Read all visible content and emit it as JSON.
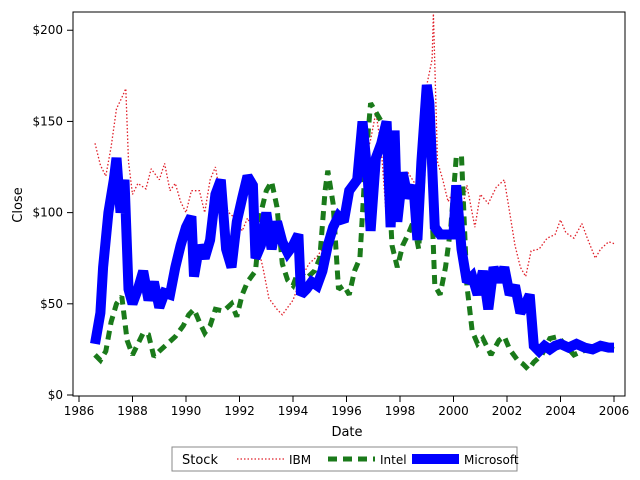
{
  "chart_data": {
    "type": "line",
    "xlabel": "Date",
    "ylabel": "Close",
    "xlim": [
      1986.0,
      2006.0
    ],
    "ylim": [
      0,
      210
    ],
    "xticks": [
      1986,
      1988,
      1990,
      1992,
      1994,
      1996,
      1998,
      2000,
      2002,
      2004,
      2006
    ],
    "yticks": [
      0,
      50,
      100,
      150,
      200
    ],
    "ytick_labels": [
      "$0",
      "$50",
      "$100",
      "$150",
      "$200"
    ],
    "grid": false,
    "legend": {
      "placement": "bottom",
      "title": "Stock",
      "entries": [
        "IBM",
        "Intel",
        "Microsoft"
      ]
    },
    "series": [
      {
        "name": "IBM",
        "color": "#e0202a",
        "style": "dotted",
        "points": [
          [
            1986.6,
            138
          ],
          [
            1986.8,
            126
          ],
          [
            1987.0,
            120
          ],
          [
            1987.2,
            136
          ],
          [
            1987.4,
            157
          ],
          [
            1987.6,
            163
          ],
          [
            1987.75,
            168
          ],
          [
            1987.85,
            128
          ],
          [
            1988.0,
            110
          ],
          [
            1988.2,
            116
          ],
          [
            1988.5,
            113
          ],
          [
            1988.7,
            124
          ],
          [
            1989.0,
            118
          ],
          [
            1989.2,
            127
          ],
          [
            1989.4,
            112
          ],
          [
            1989.6,
            116
          ],
          [
            1989.8,
            106
          ],
          [
            1990.0,
            100
          ],
          [
            1990.2,
            112
          ],
          [
            1990.5,
            112
          ],
          [
            1990.7,
            100
          ],
          [
            1990.9,
            118
          ],
          [
            1991.1,
            125
          ],
          [
            1991.3,
            108
          ],
          [
            1991.6,
            100
          ],
          [
            1991.9,
            96
          ],
          [
            1992.1,
            90
          ],
          [
            1992.3,
            97
          ],
          [
            1992.6,
            88
          ],
          [
            1992.9,
            68
          ],
          [
            1993.1,
            53
          ],
          [
            1993.4,
            47
          ],
          [
            1993.6,
            44
          ],
          [
            1993.8,
            48
          ],
          [
            1994.0,
            52
          ],
          [
            1994.3,
            64
          ],
          [
            1994.6,
            72
          ],
          [
            1994.9,
            76
          ],
          [
            1995.2,
            82
          ],
          [
            1995.5,
            92
          ],
          [
            1995.8,
            100
          ],
          [
            1996.0,
            110
          ],
          [
            1996.3,
            116
          ],
          [
            1996.6,
            122
          ],
          [
            1996.9,
            140
          ],
          [
            1997.1,
            155
          ],
          [
            1997.3,
            135
          ],
          [
            1997.5,
            95
          ],
          [
            1997.7,
            108
          ],
          [
            1998.0,
            100
          ],
          [
            1998.3,
            122
          ],
          [
            1998.6,
            115
          ],
          [
            1998.8,
            160
          ],
          [
            1999.0,
            170
          ],
          [
            1999.2,
            184
          ],
          [
            1999.25,
            209
          ],
          [
            1999.4,
            128
          ],
          [
            1999.6,
            118
          ],
          [
            1999.8,
            106
          ],
          [
            2000.0,
            112
          ],
          [
            2000.3,
            100
          ],
          [
            2000.5,
            115
          ],
          [
            2000.8,
            92
          ],
          [
            2001.0,
            110
          ],
          [
            2001.3,
            105
          ],
          [
            2001.6,
            114
          ],
          [
            2001.9,
            118
          ],
          [
            2002.1,
            100
          ],
          [
            2002.3,
            82
          ],
          [
            2002.5,
            70
          ],
          [
            2002.7,
            65
          ],
          [
            2002.9,
            79
          ],
          [
            2003.2,
            80
          ],
          [
            2003.5,
            86
          ],
          [
            2003.8,
            88
          ],
          [
            2004.0,
            96
          ],
          [
            2004.2,
            89
          ],
          [
            2004.5,
            86
          ],
          [
            2004.8,
            94
          ],
          [
            2005.0,
            86
          ],
          [
            2005.3,
            75
          ],
          [
            2005.5,
            80
          ],
          [
            2005.8,
            84
          ],
          [
            2006.0,
            83
          ]
        ]
      },
      {
        "name": "Intel",
        "color": "#1a7a1a",
        "style": "dashed",
        "points": [
          [
            1986.6,
            22
          ],
          [
            1986.8,
            19
          ],
          [
            1987.0,
            24
          ],
          [
            1987.2,
            40
          ],
          [
            1987.4,
            50
          ],
          [
            1987.6,
            54
          ],
          [
            1987.8,
            30
          ],
          [
            1988.0,
            22
          ],
          [
            1988.2,
            28
          ],
          [
            1988.4,
            34
          ],
          [
            1988.6,
            33
          ],
          [
            1988.8,
            21
          ],
          [
            1989.0,
            24
          ],
          [
            1989.3,
            28
          ],
          [
            1989.6,
            32
          ],
          [
            1989.9,
            38
          ],
          [
            1990.1,
            44
          ],
          [
            1990.3,
            47
          ],
          [
            1990.5,
            40
          ],
          [
            1990.7,
            34
          ],
          [
            1990.9,
            38
          ],
          [
            1991.1,
            47
          ],
          [
            1991.4,
            46
          ],
          [
            1991.7,
            50
          ],
          [
            1991.9,
            43
          ],
          [
            1992.1,
            55
          ],
          [
            1992.3,
            62
          ],
          [
            1992.6,
            68
          ],
          [
            1992.8,
            100
          ],
          [
            1993.0,
            112
          ],
          [
            1993.2,
            117
          ],
          [
            1993.4,
            103
          ],
          [
            1993.6,
            72
          ],
          [
            1993.8,
            63
          ],
          [
            1994.0,
            60
          ],
          [
            1994.2,
            68
          ],
          [
            1994.5,
            64
          ],
          [
            1994.8,
            68
          ],
          [
            1995.0,
            75
          ],
          [
            1995.2,
            112
          ],
          [
            1995.3,
            123
          ],
          [
            1995.5,
            105
          ],
          [
            1995.7,
            58
          ],
          [
            1995.9,
            60
          ],
          [
            1996.1,
            55
          ],
          [
            1996.3,
            68
          ],
          [
            1996.5,
            75
          ],
          [
            1996.7,
            125
          ],
          [
            1996.9,
            160
          ],
          [
            1997.1,
            155
          ],
          [
            1997.3,
            150
          ],
          [
            1997.5,
            140
          ],
          [
            1997.7,
            82
          ],
          [
            1997.9,
            70
          ],
          [
            1998.1,
            82
          ],
          [
            1998.3,
            88
          ],
          [
            1998.5,
            95
          ],
          [
            1998.7,
            80
          ],
          [
            1998.9,
            130
          ],
          [
            1999.1,
            140
          ],
          [
            1999.3,
            60
          ],
          [
            1999.5,
            55
          ],
          [
            1999.7,
            70
          ],
          [
            1999.9,
            92
          ],
          [
            2000.1,
            130
          ],
          [
            2000.3,
            131
          ],
          [
            2000.5,
            60
          ],
          [
            2000.7,
            35
          ],
          [
            2000.9,
            28
          ],
          [
            2001.1,
            31
          ],
          [
            2001.4,
            22
          ],
          [
            2001.7,
            30
          ],
          [
            2001.9,
            32
          ],
          [
            2002.1,
            25
          ],
          [
            2002.4,
            19
          ],
          [
            2002.6,
            17
          ],
          [
            2002.8,
            14
          ],
          [
            2003.0,
            18
          ],
          [
            2003.3,
            22
          ],
          [
            2003.6,
            31
          ],
          [
            2003.9,
            32
          ],
          [
            2004.2,
            27
          ],
          [
            2004.5,
            22
          ],
          [
            2004.8,
            24
          ],
          [
            2005.1,
            25
          ],
          [
            2005.4,
            27
          ],
          [
            2005.7,
            26
          ],
          [
            2006.0,
            25
          ]
        ]
      },
      {
        "name": "Microsoft",
        "color": "#0000ff",
        "style": "solid",
        "points": [
          [
            1986.6,
            28
          ],
          [
            1986.8,
            45
          ],
          [
            1986.9,
            70
          ],
          [
            1987.1,
            100
          ],
          [
            1987.3,
            118
          ],
          [
            1987.4,
            130
          ],
          [
            1987.55,
            100
          ],
          [
            1987.7,
            118
          ],
          [
            1987.85,
            58
          ],
          [
            1988.0,
            50
          ],
          [
            1988.2,
            58
          ],
          [
            1988.4,
            68
          ],
          [
            1988.6,
            52
          ],
          [
            1988.8,
            62
          ],
          [
            1989.0,
            48
          ],
          [
            1989.2,
            56
          ],
          [
            1989.4,
            55
          ],
          [
            1989.6,
            70
          ],
          [
            1989.8,
            82
          ],
          [
            1990.0,
            92
          ],
          [
            1990.2,
            98
          ],
          [
            1990.3,
            65
          ],
          [
            1990.5,
            82
          ],
          [
            1990.7,
            75
          ],
          [
            1990.9,
            85
          ],
          [
            1991.1,
            110
          ],
          [
            1991.3,
            118
          ],
          [
            1991.5,
            80
          ],
          [
            1991.7,
            70
          ],
          [
            1991.9,
            95
          ],
          [
            1992.1,
            108
          ],
          [
            1992.3,
            120
          ],
          [
            1992.5,
            115
          ],
          [
            1992.6,
            75
          ],
          [
            1992.8,
            82
          ],
          [
            1993.0,
            100
          ],
          [
            1993.2,
            80
          ],
          [
            1993.4,
            95
          ],
          [
            1993.6,
            84
          ],
          [
            1993.8,
            78
          ],
          [
            1994.0,
            82
          ],
          [
            1994.2,
            88
          ],
          [
            1994.3,
            55
          ],
          [
            1994.5,
            58
          ],
          [
            1994.7,
            62
          ],
          [
            1994.9,
            60
          ],
          [
            1995.1,
            68
          ],
          [
            1995.3,
            82
          ],
          [
            1995.5,
            92
          ],
          [
            1995.7,
            98
          ],
          [
            1995.9,
            95
          ],
          [
            1996.1,
            112
          ],
          [
            1996.4,
            118
          ],
          [
            1996.6,
            150
          ],
          [
            1996.8,
            118
          ],
          [
            1996.9,
            90
          ],
          [
            1997.1,
            130
          ],
          [
            1997.3,
            138
          ],
          [
            1997.5,
            150
          ],
          [
            1997.65,
            92
          ],
          [
            1997.8,
            145
          ],
          [
            1997.9,
            95
          ],
          [
            1998.1,
            122
          ],
          [
            1998.3,
            108
          ],
          [
            1998.5,
            115
          ],
          [
            1998.65,
            85
          ],
          [
            1998.8,
            128
          ],
          [
            1999.0,
            170
          ],
          [
            1999.1,
            160
          ],
          [
            1999.3,
            92
          ],
          [
            1999.5,
            88
          ],
          [
            1999.8,
            88
          ],
          [
            2000.0,
            88
          ],
          [
            2000.1,
            115
          ],
          [
            2000.3,
            80
          ],
          [
            2000.5,
            62
          ],
          [
            2000.7,
            65
          ],
          [
            2000.9,
            55
          ],
          [
            2001.1,
            68
          ],
          [
            2001.3,
            47
          ],
          [
            2001.5,
            70
          ],
          [
            2001.7,
            62
          ],
          [
            2001.9,
            70
          ],
          [
            2002.1,
            55
          ],
          [
            2002.3,
            60
          ],
          [
            2002.5,
            45
          ],
          [
            2002.7,
            50
          ],
          [
            2002.85,
            55
          ],
          [
            2003.0,
            27
          ],
          [
            2003.2,
            24
          ],
          [
            2003.4,
            27
          ],
          [
            2003.6,
            25
          ],
          [
            2003.8,
            27
          ],
          [
            2004.0,
            28
          ],
          [
            2004.3,
            26
          ],
          [
            2004.6,
            28
          ],
          [
            2004.9,
            26
          ],
          [
            2005.2,
            25
          ],
          [
            2005.5,
            27
          ],
          [
            2005.8,
            26
          ],
          [
            2006.0,
            26
          ]
        ]
      }
    ]
  }
}
